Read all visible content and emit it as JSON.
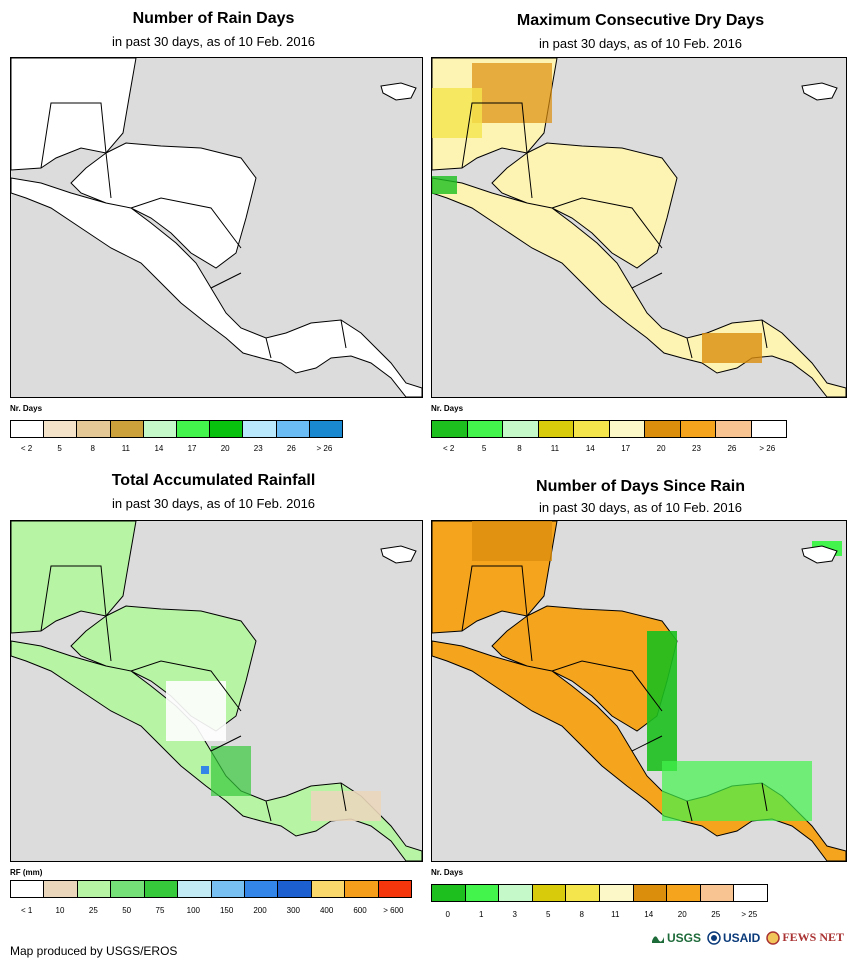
{
  "panels": [
    {
      "title": "Number of Rain Days",
      "subtitle": "in past 30 days, as of 10 Feb. 2016",
      "legend": {
        "title": "Nr. Days",
        "colors": [
          "#ffffff",
          "#f5e3c9",
          "#e4c997",
          "#cca03b",
          "#c5f9c9",
          "#42f44b",
          "#08c10e",
          "#b9e7fb",
          "#6bbbf5",
          "#1a88d0"
        ],
        "labels": [
          "< 2",
          "5",
          "8",
          "11",
          "14",
          "17",
          "20",
          "23",
          "26",
          "> 26"
        ]
      }
    },
    {
      "title": "Maximum Consecutive Dry Days",
      "subtitle": "in past 30 days, as of 10 Feb. 2016",
      "legend": {
        "title": "Nr. Days",
        "colors": [
          "#1cbf1e",
          "#42f44b",
          "#c5f9c9",
          "#d8cb0c",
          "#f4e54c",
          "#fdf8c8",
          "#db8d0c",
          "#f5a41e",
          "#f7c492",
          "#ffffff"
        ],
        "labels": [
          "< 2",
          "5",
          "8",
          "11",
          "14",
          "17",
          "20",
          "23",
          "26",
          "> 26"
        ]
      }
    },
    {
      "title": "Total Accumulated Rainfall",
      "subtitle": "in past 30 days, as of 10 Feb. 2016",
      "legend": {
        "title": "RF (mm)",
        "colors": [
          "#ffffff",
          "#ead7bb",
          "#b7f5a4",
          "#76e078",
          "#36c93c",
          "#c2ebf5",
          "#78bff2",
          "#3386e8",
          "#1c5fd0",
          "#fbd86b",
          "#f59e1c",
          "#f5360d"
        ],
        "labels": [
          "< 1",
          "10",
          "25",
          "50",
          "75",
          "100",
          "150",
          "200",
          "300",
          "400",
          "600",
          "> 600"
        ]
      }
    },
    {
      "title": "Number of Days Since Rain",
      "subtitle": "in past 30 days, as of 10 Feb. 2016",
      "legend": {
        "title": "Nr. Days",
        "colors": [
          "#1cbf1e",
          "#42f44b",
          "#c5f9c9",
          "#d8cb0c",
          "#f4e54c",
          "#fdf8c8",
          "#db8d0c",
          "#f5a41e",
          "#f7c492",
          "#ffffff"
        ],
        "labels": [
          "0",
          "1",
          "3",
          "5",
          "8",
          "11",
          "14",
          "20",
          "25",
          "> 25"
        ]
      }
    }
  ],
  "footer": "Map produced by USGS/EROS",
  "logos": [
    "USGS",
    "USAID",
    "FEWS NET"
  ]
}
